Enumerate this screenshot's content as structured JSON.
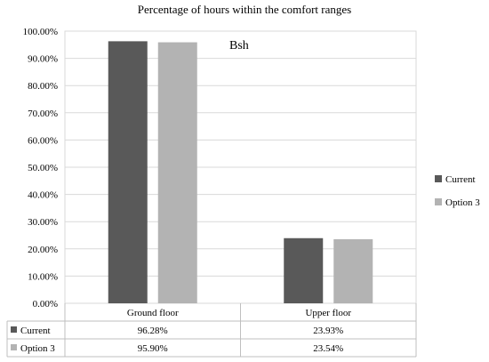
{
  "chart_data": {
    "type": "bar",
    "title": "Percentage of hours within the comfort ranges",
    "annotation": "Bsh",
    "categories": [
      "Ground floor",
      "Upper floor"
    ],
    "series": [
      {
        "name": "Current",
        "values": [
          96.28,
          23.93
        ],
        "labels": [
          "96.28%",
          "23.93%"
        ],
        "color": "#595959"
      },
      {
        "name": "Option 3",
        "values": [
          95.9,
          23.54
        ],
        "labels": [
          "95.90%",
          "23.54%"
        ],
        "color": "#b3b3b3"
      }
    ],
    "ylim": [
      0,
      100
    ],
    "yticks": [
      "0.00%",
      "10.00%",
      "20.00%",
      "30.00%",
      "40.00%",
      "50.00%",
      "60.00%",
      "70.00%",
      "80.00%",
      "90.00%",
      "100.00%"
    ],
    "grid": true,
    "legend": "right",
    "data_table": true
  }
}
